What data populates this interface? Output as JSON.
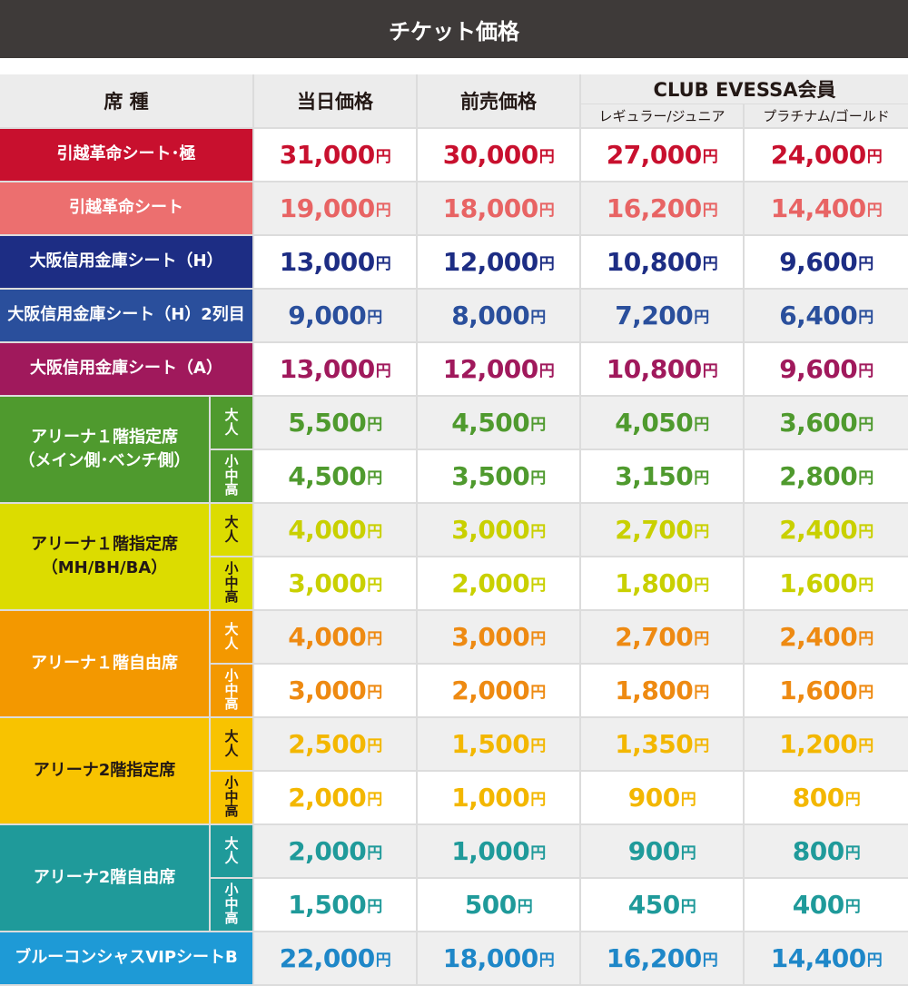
{
  "title": "チケット価格",
  "columns": {
    "seat": "席 種",
    "day_of": "当日価格",
    "advance": "前売価格",
    "club": "CLUB EVESSA会員",
    "regular": "レギュラー/ジュニア",
    "platinum": "プラチナム/ゴールド"
  },
  "age_labels": {
    "adult": [
      "大",
      "人"
    ],
    "child": [
      "小",
      "中",
      "高"
    ]
  },
  "yen": "円",
  "rows": [
    {
      "seat": [
        "引越革命シート･極"
      ],
      "color": "#c8102e",
      "text_color": "#c8102e",
      "tiers": [
        {
          "prices": [
            "31,000",
            "30,000",
            "27,000",
            "24,000"
          ]
        }
      ]
    },
    {
      "seat": [
        "引越革命シート"
      ],
      "color": "#ec6f6f",
      "text_color": "#e86464",
      "tiers": [
        {
          "prices": [
            "19,000",
            "18,000",
            "16,200",
            "14,400"
          ]
        }
      ]
    },
    {
      "seat": [
        "大阪信用金庫シート（H）"
      ],
      "color": "#1d2d84",
      "text_color": "#1d2d84",
      "tiers": [
        {
          "prices": [
            "13,000",
            "12,000",
            "10,800",
            "9,600"
          ]
        }
      ]
    },
    {
      "seat": [
        "大阪信用金庫シート（H）2列目"
      ],
      "color": "#2a4f9c",
      "text_color": "#2a4f9c",
      "tiers": [
        {
          "prices": [
            "9,000",
            "8,000",
            "7,200",
            "6,400"
          ]
        }
      ]
    },
    {
      "seat": [
        "大阪信用金庫シート（A）"
      ],
      "color": "#a0195c",
      "text_color": "#a0195c",
      "tiers": [
        {
          "prices": [
            "13,000",
            "12,000",
            "10,800",
            "9,600"
          ]
        }
      ]
    },
    {
      "seat": [
        "アリーナ１階指定席",
        "（メイン側･ベンチ側）"
      ],
      "color": "#4f9a2e",
      "text_color": "#4f9a2e",
      "tiers": [
        {
          "age": "adult",
          "prices": [
            "5,500",
            "4,500",
            "4,050",
            "3,600"
          ]
        },
        {
          "age": "child",
          "prices": [
            "4,500",
            "3,500",
            "3,150",
            "2,800"
          ]
        }
      ]
    },
    {
      "seat": [
        "アリーナ１階指定席",
        "（MH/BH/BA）"
      ],
      "color": "#dcdc00",
      "text_color": "#c9d000",
      "label_color": "#231815",
      "tiers": [
        {
          "age": "adult",
          "prices": [
            "4,000",
            "3,000",
            "2,700",
            "2,400"
          ]
        },
        {
          "age": "child",
          "prices": [
            "3,000",
            "2,000",
            "1,800",
            "1,600"
          ]
        }
      ]
    },
    {
      "seat": [
        "アリーナ１階自由席"
      ],
      "color": "#f39800",
      "text_color": "#ee8a12",
      "tiers": [
        {
          "age": "adult",
          "prices": [
            "4,000",
            "3,000",
            "2,700",
            "2,400"
          ]
        },
        {
          "age": "child",
          "prices": [
            "3,000",
            "2,000",
            "1,800",
            "1,600"
          ]
        }
      ]
    },
    {
      "seat": [
        "アリーナ2階指定席"
      ],
      "color": "#f8c300",
      "text_color": "#f3b700",
      "label_color": "#231815",
      "tiers": [
        {
          "age": "adult",
          "prices": [
            "2,500",
            "1,500",
            "1,350",
            "1,200"
          ]
        },
        {
          "age": "child",
          "prices": [
            "2,000",
            "1,000",
            "900",
            "800"
          ]
        }
      ]
    },
    {
      "seat": [
        "アリーナ2階自由席"
      ],
      "color": "#1f9a9a",
      "text_color": "#1f9a9a",
      "tiers": [
        {
          "age": "adult",
          "prices": [
            "2,000",
            "1,000",
            "900",
            "800"
          ]
        },
        {
          "age": "child",
          "prices": [
            "1,500",
            "500",
            "450",
            "400"
          ]
        }
      ]
    },
    {
      "seat": [
        "ブルーコンシャスVIPシートB"
      ],
      "color": "#1e9ad6",
      "text_color": "#1e87c8",
      "tiers": [
        {
          "prices": [
            "22,000",
            "18,000",
            "16,200",
            "14,400"
          ]
        }
      ]
    }
  ]
}
